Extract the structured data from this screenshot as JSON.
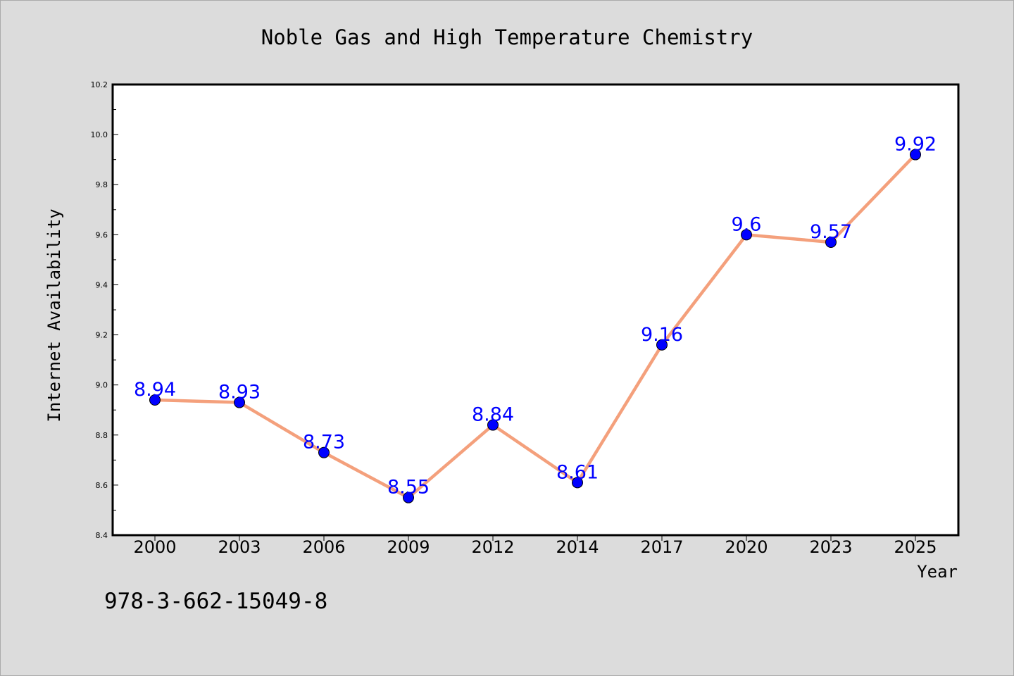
{
  "chart_data": {
    "type": "line",
    "title": "Noble Gas and High Temperature Chemistry",
    "xlabel": "Year",
    "ylabel": "Internet Availability",
    "categories": [
      "2000",
      "2003",
      "2006",
      "2009",
      "2012",
      "2014",
      "2017",
      "2020",
      "2023",
      "2025"
    ],
    "series": [
      {
        "values": [
          8.94,
          8.93,
          8.73,
          8.55,
          8.84,
          8.61,
          9.16,
          9.6,
          9.57,
          9.92
        ],
        "labels": [
          "8.94",
          "8.93",
          "8.73",
          "8.55",
          "8.84",
          "8.61",
          "9.16",
          "9.6",
          "9.57",
          "9.92"
        ],
        "line_color": "#f4a07c",
        "marker_color": "#0000ff"
      }
    ],
    "ylim": [
      8.4,
      10.2
    ],
    "yticks": [
      "8.4",
      "8.6",
      "8.8",
      "9.0",
      "9.2",
      "9.4",
      "9.6",
      "9.8",
      "10.0",
      "10.2"
    ],
    "grid": false,
    "legend": "none"
  },
  "caption": "978-3-662-15049-8",
  "colors": {
    "background": "#dcdcdc",
    "plot_background": "#ffffff",
    "label_color": "#0000ff"
  }
}
